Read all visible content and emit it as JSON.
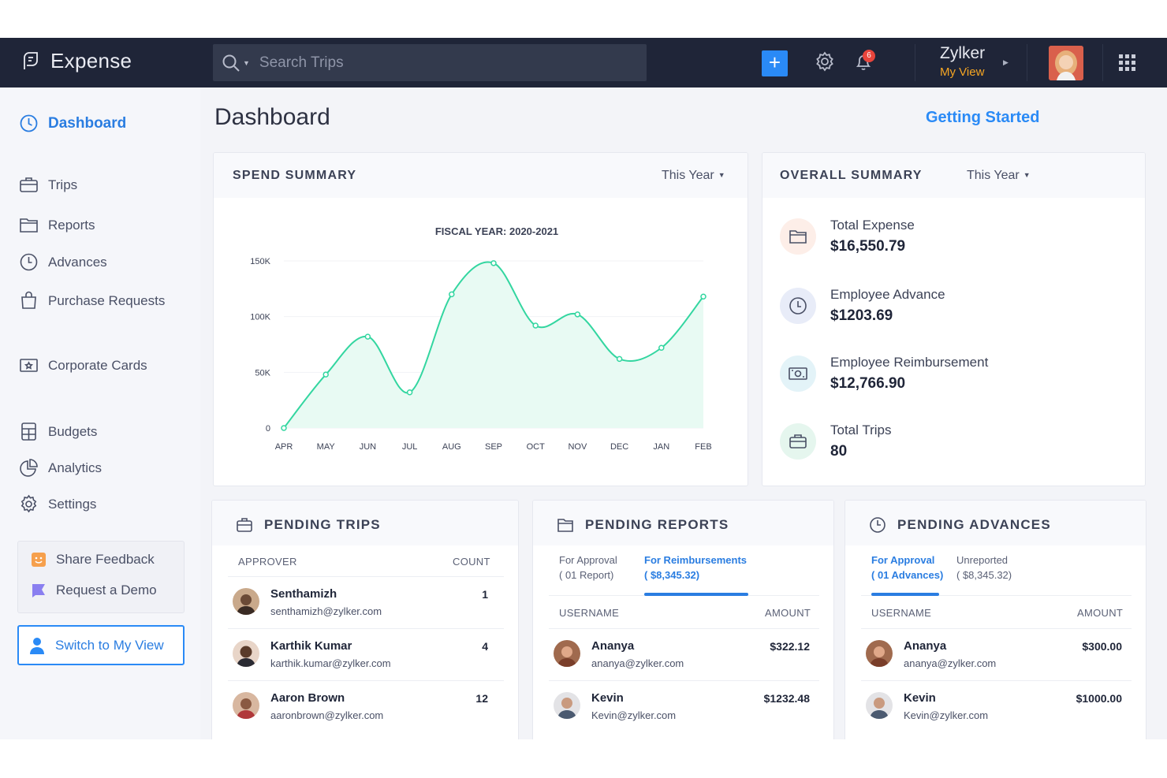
{
  "app": {
    "name": "Expense"
  },
  "search": {
    "placeholder": "Search Trips"
  },
  "topbar": {
    "notification_count": "6",
    "org_name": "Zylker",
    "org_view": "My View",
    "add_label": "+"
  },
  "sidebar": {
    "items": [
      {
        "label": "Dashboard",
        "icon": "dashboard-icon"
      },
      {
        "label": "Trips",
        "icon": "suitcase-icon"
      },
      {
        "label": "Reports",
        "icon": "folder-icon"
      },
      {
        "label": "Advances",
        "icon": "clock-coin-icon"
      },
      {
        "label": "Purchase Requests",
        "icon": "shopping-bag-icon"
      },
      {
        "label": "Corporate Cards",
        "icon": "card-icon"
      },
      {
        "label": "Budgets",
        "icon": "calculator-icon"
      },
      {
        "label": "Analytics",
        "icon": "pie-chart-icon"
      },
      {
        "label": "Settings",
        "icon": "gear-icon"
      }
    ],
    "share_feedback": "Share Feedback",
    "request_demo": "Request a Demo",
    "switch_view": "Switch to My View"
  },
  "page": {
    "title": "Dashboard",
    "getting_started": "Getting Started"
  },
  "spend_summary": {
    "title": "SPEND SUMMARY",
    "period": "This Year"
  },
  "chart_data": {
    "type": "line",
    "title": "FISCAL YEAR: 2020-2021",
    "categories": [
      "APR",
      "MAY",
      "JUN",
      "JUL",
      "AUG",
      "SEP",
      "OCT",
      "NOV",
      "DEC",
      "JAN",
      "FEB"
    ],
    "values": [
      0,
      48000,
      82000,
      32000,
      120000,
      148000,
      92000,
      102000,
      62000,
      72000,
      118000
    ],
    "ylim": [
      0,
      150000
    ],
    "yticks": [
      "0",
      "50K",
      "100K",
      "150K"
    ],
    "xlabel": "",
    "ylabel": "",
    "line_color": "#33d6a0",
    "area_color": "#e8faf3"
  },
  "overall_summary": {
    "title": "OVERALL SUMMARY",
    "period": "This Year",
    "items": [
      {
        "label": "Total Expense",
        "value": "$16,550.79",
        "icon": "folder-icon"
      },
      {
        "label": "Employee Advance",
        "value": "$1203.69",
        "icon": "clock-coin-icon"
      },
      {
        "label": "Employee Reimbursement",
        "value": "$12,766.90",
        "icon": "cash-icon"
      },
      {
        "label": "Total Trips",
        "value": "80",
        "icon": "suitcase-icon"
      }
    ]
  },
  "pending_trips": {
    "title": "PENDING TRIPS",
    "col_approver": "APPROVER",
    "col_count": "COUNT",
    "rows": [
      {
        "name": "Senthamizh",
        "email": "senthamizh@zylker.com",
        "count": "1"
      },
      {
        "name": "Karthik Kumar",
        "email": "karthik.kumar@zylker.com",
        "count": "4"
      },
      {
        "name": "Aaron Brown",
        "email": "aaronbrown@zylker.com",
        "count": "12"
      }
    ]
  },
  "pending_reports": {
    "title": "PENDING REPORTS",
    "tab1_line1": "For Approval",
    "tab1_line2": "( 01 Report)",
    "tab2_line1": "For Reimbursements",
    "tab2_line2": "( $8,345.32)",
    "col_user": "USERNAME",
    "col_amount": "AMOUNT",
    "rows": [
      {
        "name": "Ananya",
        "email": "ananya@zylker.com",
        "amount": "$322.12"
      },
      {
        "name": "Kevin",
        "email": "Kevin@zylker.com",
        "amount": "$1232.48"
      }
    ]
  },
  "pending_advances": {
    "title": "PENDING ADVANCES",
    "tab1_line1": "For Approval",
    "tab1_line2": "( 01 Advances)",
    "tab2_line1": "Unreported",
    "tab2_line2": "( $8,345.32)",
    "col_user": "USERNAME",
    "col_amount": "AMOUNT",
    "rows": [
      {
        "name": "Ananya",
        "email": "ananya@zylker.com",
        "amount": "$300.00"
      },
      {
        "name": "Kevin",
        "email": "Kevin@zylker.com",
        "amount": "$1000.00"
      }
    ]
  }
}
